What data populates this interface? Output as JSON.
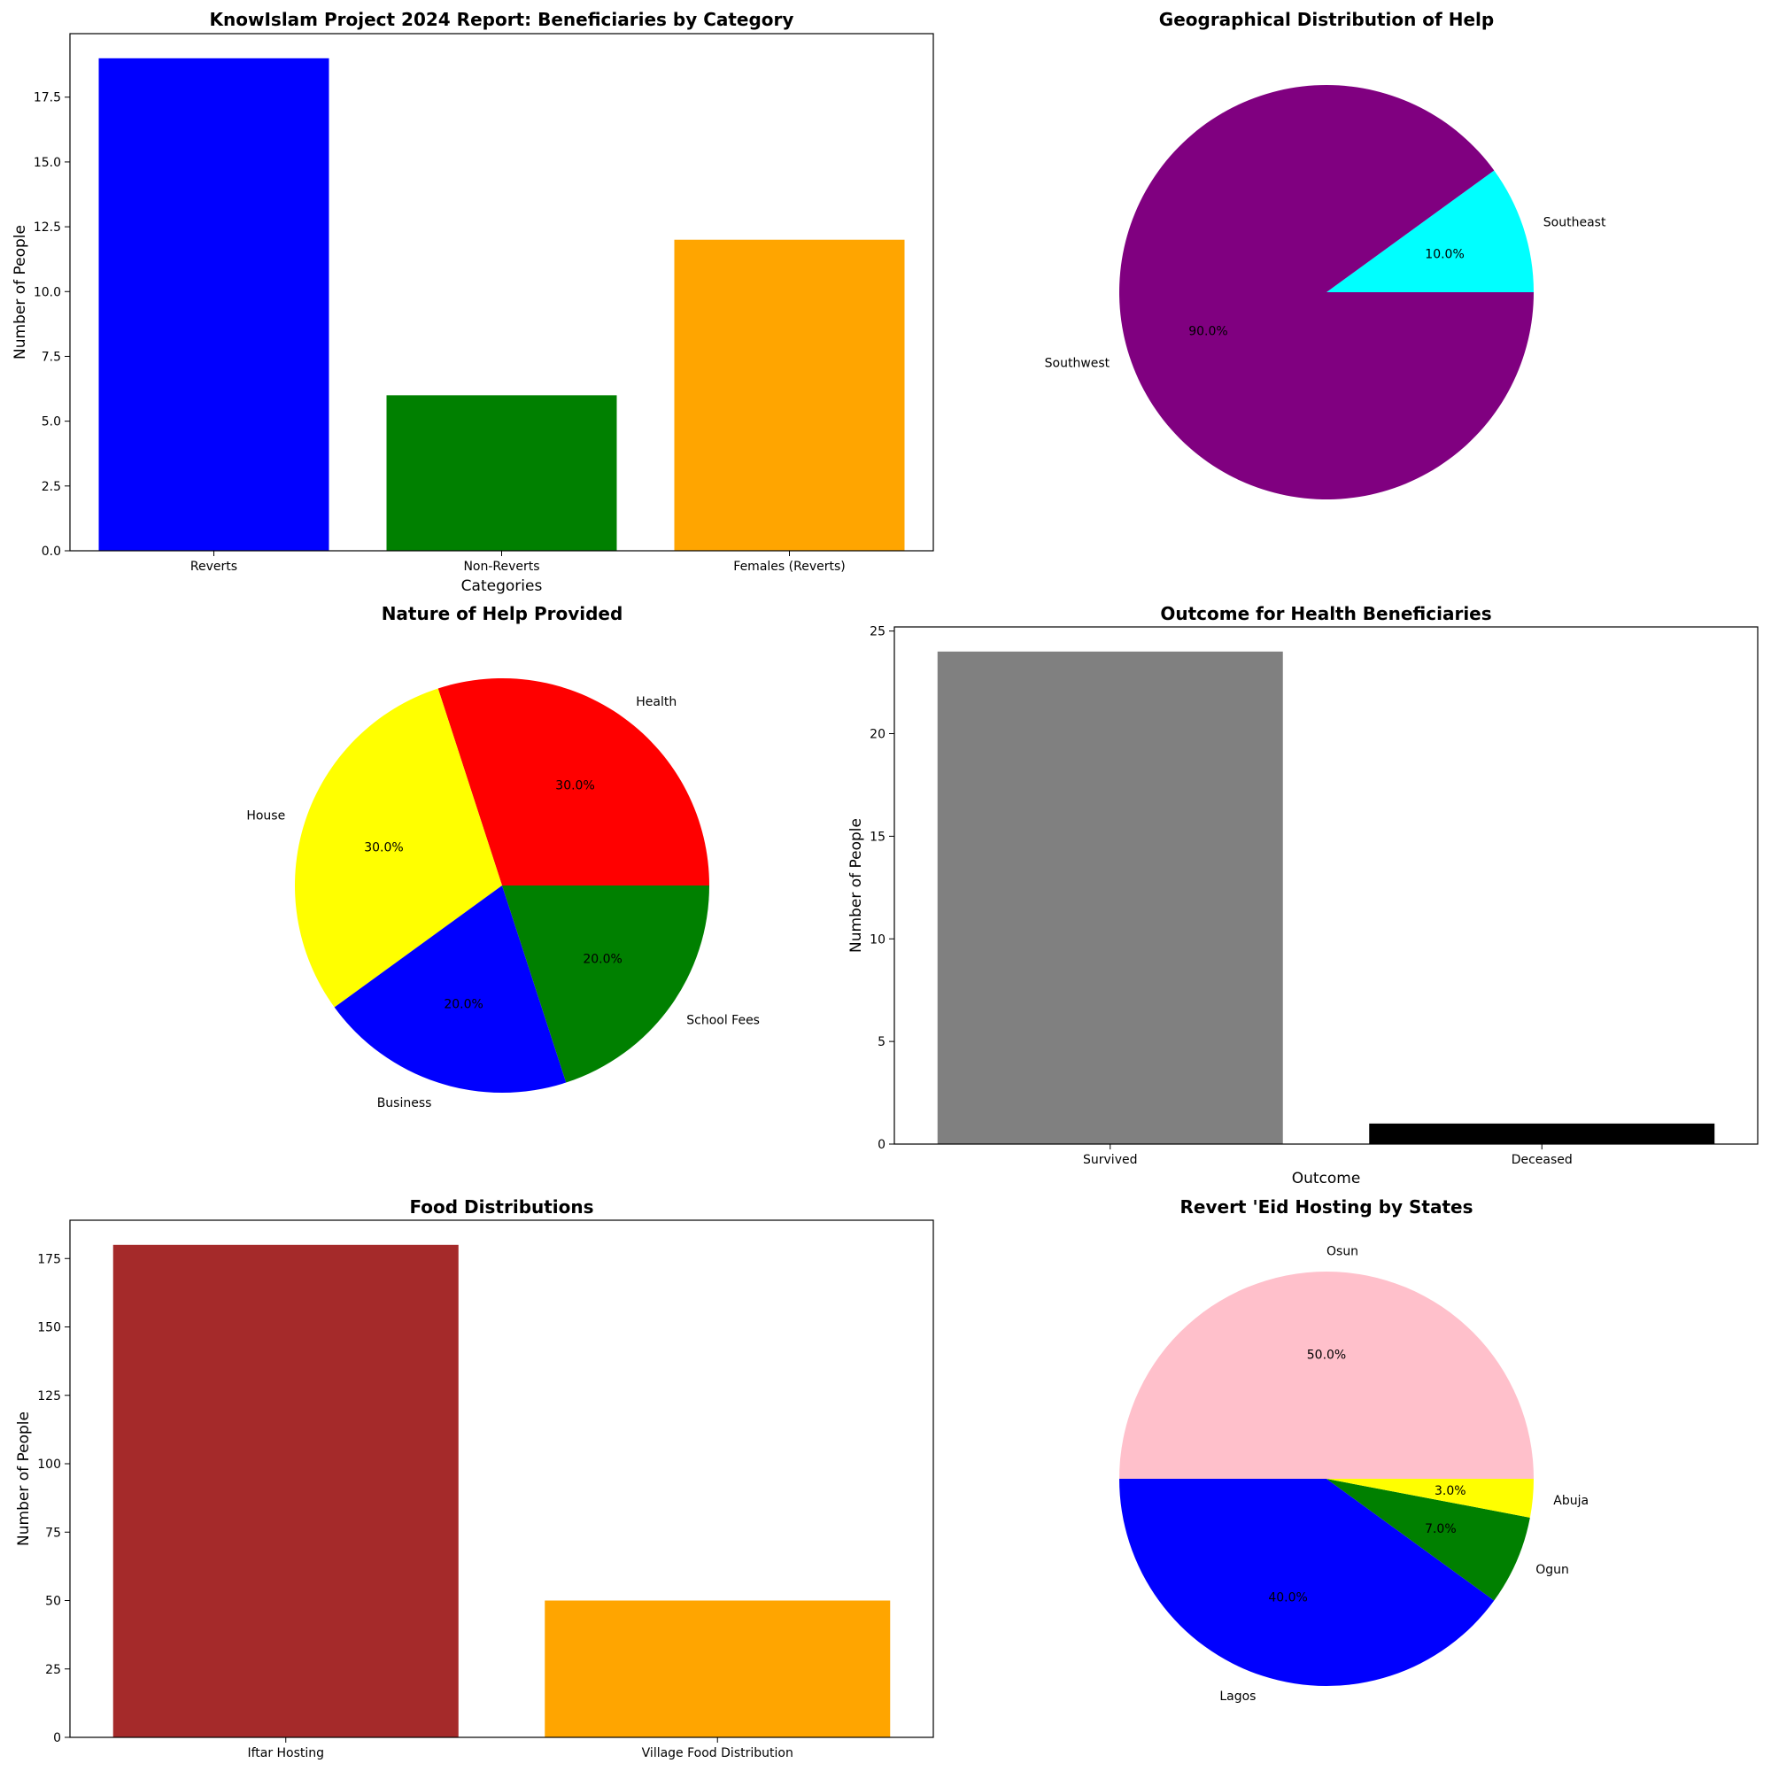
{
  "chart_data": [
    {
      "type": "bar",
      "title": "KnowIslam Project 2024 Report: Beneficiaries by Category",
      "xlabel": "Categories",
      "ylabel": "Number of People",
      "categories": [
        "Reverts",
        "Non-Reverts",
        "Females (Reverts)"
      ],
      "values": [
        19,
        6,
        12
      ],
      "colors": [
        "#0000ff",
        "#008000",
        "#ffa500"
      ],
      "ylim": [
        0,
        19.95
      ],
      "yticks": [
        0,
        2.5,
        5,
        7.5,
        10,
        12.5,
        15,
        17.5
      ],
      "ytick_labels": [
        "0.0",
        "2.5",
        "5.0",
        "7.5",
        "10.0",
        "12.5",
        "15.0",
        "17.5"
      ],
      "grid": false
    },
    {
      "type": "pie",
      "title": "Geographical Distribution of Help",
      "labels": [
        "Southeast",
        "Southwest"
      ],
      "values": [
        10,
        90
      ],
      "pct_labels": [
        "10.0%",
        "90.0%"
      ],
      "colors": [
        "#00ffff",
        "#800080"
      ],
      "start_angle": 0,
      "direction": "counterclockwise"
    },
    {
      "type": "pie",
      "title": "Nature of Help Provided",
      "labels": [
        "Health",
        "House",
        "Business",
        "School Fees"
      ],
      "values": [
        30,
        30,
        20,
        20
      ],
      "pct_labels": [
        "30.0%",
        "30.0%",
        "20.0%",
        "20.0%"
      ],
      "colors": [
        "#ff0000",
        "#ffff00",
        "#0000ff",
        "#008000"
      ],
      "start_angle": 0,
      "direction": "counterclockwise"
    },
    {
      "type": "bar",
      "title": "Outcome for Health Beneficiaries",
      "xlabel": "Outcome",
      "ylabel": "Number of People",
      "categories": [
        "Survived",
        "Deceased"
      ],
      "values": [
        24,
        1
      ],
      "colors": [
        "#808080",
        "#000000"
      ],
      "ylim": [
        0,
        25.2
      ],
      "yticks": [
        0,
        5,
        10,
        15,
        20,
        25
      ],
      "ytick_labels": [
        "0",
        "5",
        "10",
        "15",
        "20",
        "25"
      ],
      "grid": false
    },
    {
      "type": "bar",
      "title": "Food Distributions",
      "xlabel": "",
      "ylabel": "Number of People",
      "categories": [
        "Iftar Hosting",
        "Village Food Distribution"
      ],
      "values": [
        180,
        50
      ],
      "colors": [
        "#a52a2a",
        "#ffa500"
      ],
      "ylim": [
        0,
        189
      ],
      "yticks": [
        0,
        25,
        50,
        75,
        100,
        125,
        150,
        175
      ],
      "ytick_labels": [
        "0",
        "25",
        "50",
        "75",
        "100",
        "125",
        "150",
        "175"
      ],
      "grid": false
    },
    {
      "type": "pie",
      "title": "Revert 'Eid Hosting by States",
      "labels": [
        "Osun",
        "Lagos",
        "Ogun",
        "Abuja"
      ],
      "values": [
        50,
        40,
        7,
        3
      ],
      "pct_labels": [
        "50.0%",
        "40.0%",
        "7.0%",
        "3.0%"
      ],
      "colors": [
        "#ffc0cb",
        "#0000ff",
        "#008000",
        "#ffff00"
      ],
      "start_angle": 0,
      "direction": "counterclockwise"
    }
  ]
}
